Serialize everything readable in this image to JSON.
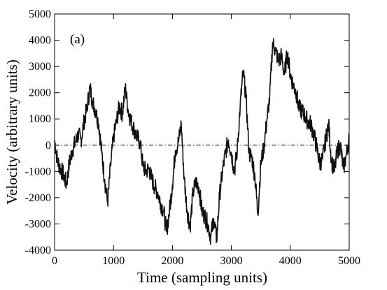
{
  "chart_data": {
    "type": "line",
    "panel_label": "(a)",
    "xlabel": "Time (sampling units)",
    "ylabel": "Velocity (arbitrary units)",
    "xlim": [
      0,
      5000
    ],
    "ylim": [
      -4000,
      5000
    ],
    "x_ticks": [
      0,
      1000,
      2000,
      3000,
      4000,
      5000
    ],
    "y_ticks": [
      -4000,
      -3000,
      -2000,
      -1000,
      0,
      1000,
      2000,
      3000,
      4000,
      5000
    ],
    "grid": false,
    "legend": "none",
    "reference_line": {
      "y": 0,
      "style": "dash-dot"
    },
    "series": [
      {
        "x": [
          0,
          50,
          100,
          150,
          200,
          250,
          300,
          350,
          400,
          450,
          500,
          550,
          600,
          650,
          700,
          750,
          800,
          850,
          900,
          950,
          1000,
          1050,
          1100,
          1150,
          1200,
          1250,
          1300,
          1350,
          1400,
          1450,
          1500,
          1550,
          1600,
          1650,
          1700,
          1750,
          1800,
          1850,
          1900,
          1950,
          2000,
          2050,
          2100,
          2150,
          2200,
          2250,
          2300,
          2350,
          2400,
          2450,
          2500,
          2550,
          2600,
          2650,
          2700,
          2750,
          2800,
          2850,
          2900,
          2950,
          3000,
          3050,
          3100,
          3150,
          3200,
          3250,
          3300,
          3350,
          3400,
          3450,
          3500,
          3550,
          3600,
          3650,
          3700,
          3750,
          3800,
          3850,
          3900,
          3950,
          4000,
          4050,
          4100,
          4150,
          4200,
          4250,
          4300,
          4350,
          4400,
          4450,
          4500,
          4550,
          4600,
          4650,
          4700,
          4750,
          4800,
          4850,
          4900,
          4950,
          5000
        ],
        "y": [
          200,
          -600,
          -900,
          -1100,
          -1500,
          -700,
          -200,
          100,
          400,
          200,
          900,
          1400,
          2200,
          1600,
          1300,
          800,
          -300,
          -1300,
          -2200,
          -800,
          300,
          900,
          1500,
          1200,
          2200,
          1300,
          900,
          600,
          300,
          100,
          -800,
          -1000,
          -900,
          -1300,
          -1600,
          -1800,
          -2200,
          -2500,
          -3300,
          -2500,
          -1500,
          -200,
          100,
          800,
          -1300,
          -2500,
          -3100,
          -1800,
          -1400,
          -1600,
          -2500,
          -2700,
          -3000,
          -3500,
          -2800,
          -3600,
          -1900,
          -1000,
          -300,
          200,
          -300,
          -1000,
          -200,
          1500,
          2800,
          1800,
          -300,
          -500,
          -1200,
          -2600,
          -700,
          -100,
          900,
          1800,
          3900,
          3600,
          3200,
          3400,
          2700,
          3500,
          2700,
          2300,
          2000,
          1400,
          1300,
          1100,
          900,
          800,
          400,
          -100,
          -700,
          -500,
          200,
          800,
          -600,
          -1000,
          -200,
          0,
          -900,
          -400,
          300
        ]
      }
    ]
  }
}
